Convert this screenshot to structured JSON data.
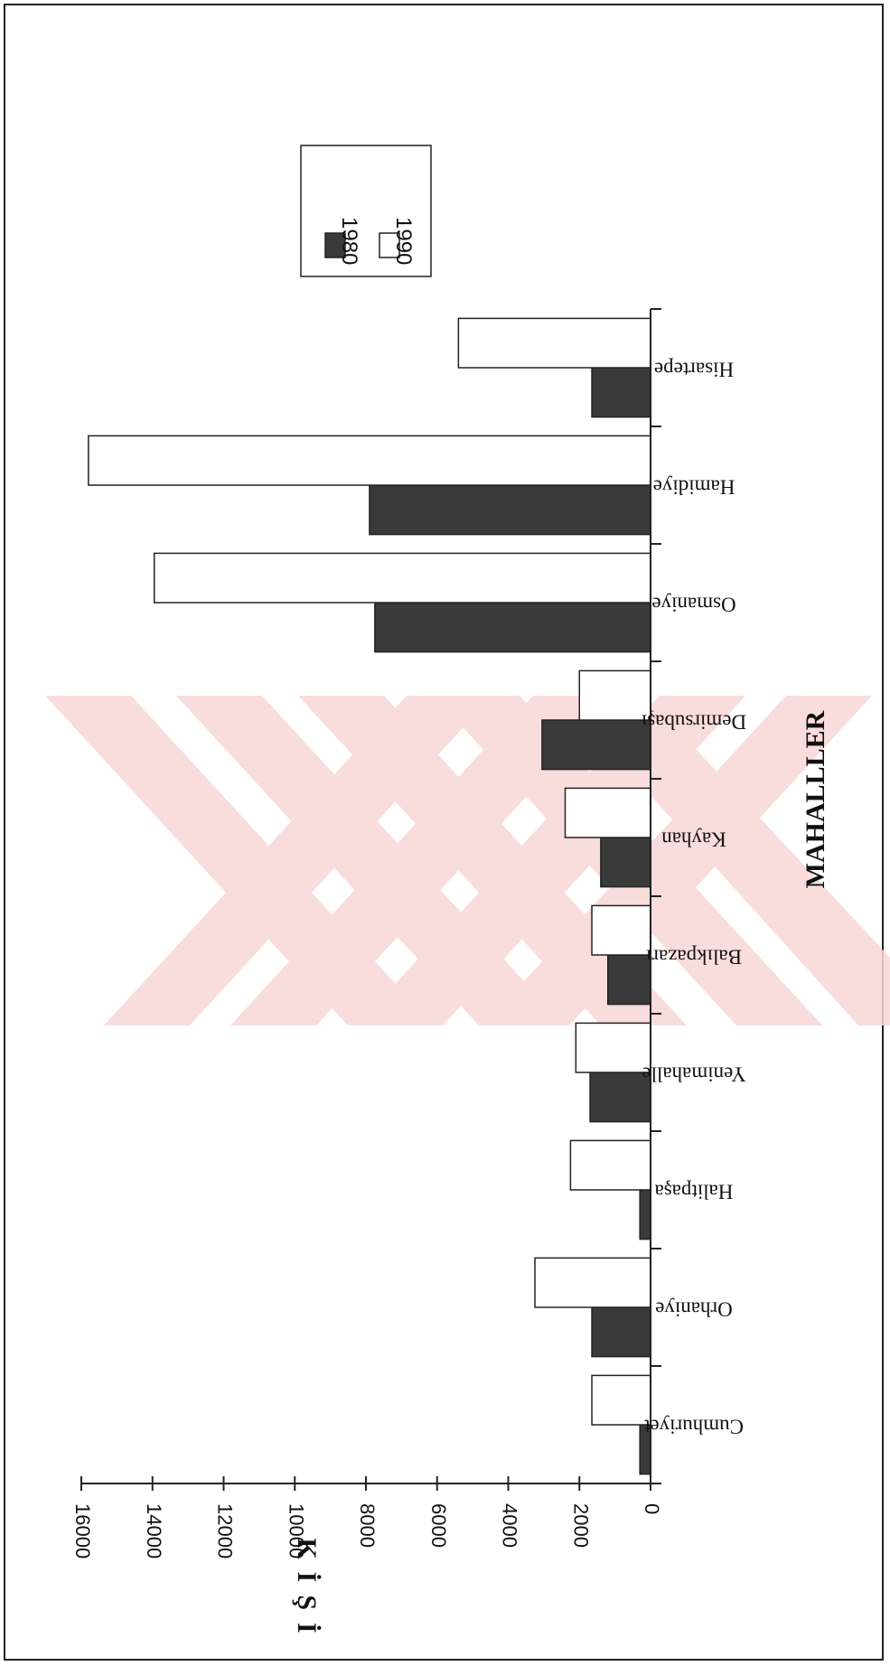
{
  "chart_data": {
    "type": "bar",
    "orientation": "vertical-bars, page rotated 90° clockwise",
    "title": "",
    "xlabel": "MAHALLLER",
    "ylabel": "KİŞİ",
    "ylim": [
      0,
      16000
    ],
    "yticks": [
      "0",
      "2000",
      "4000",
      "6000",
      "8000",
      "10000",
      "12000",
      "14000",
      "16000"
    ],
    "categories": [
      "Cumhuriyet",
      "Orhaniye",
      "Halitpaşa",
      "Yenimahalle",
      "Balıkpazarı",
      "Kayhan",
      "Demirsubaşı",
      "Osmaniye",
      "Hamidiye",
      "Hisartepe"
    ],
    "series": [
      {
        "name": "1980",
        "color": "#3a3a3a",
        "values": [
          300,
          1650,
          300,
          1700,
          1200,
          1400,
          3050,
          7750,
          7900,
          1650
        ]
      },
      {
        "name": "1990",
        "color": "#ffffff",
        "values": [
          1650,
          3250,
          2250,
          2100,
          1650,
          2400,
          2000,
          13950,
          15800,
          5400
        ]
      }
    ],
    "legend_position": "top-right",
    "grid": false
  }
}
